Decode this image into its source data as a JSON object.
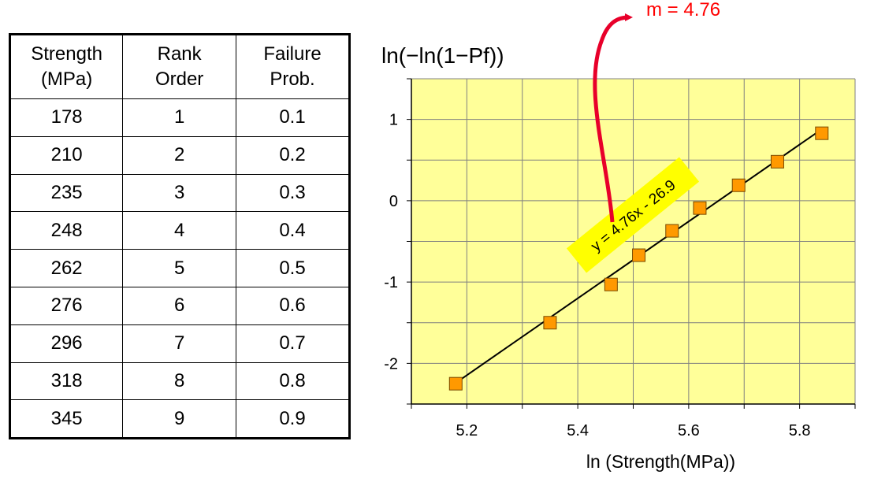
{
  "table": {
    "headers": [
      {
        "line1": "Strength",
        "line2": "(MPa)"
      },
      {
        "line1": "Rank",
        "line2": "Order"
      },
      {
        "line1": "Failure",
        "line2": "Prob."
      }
    ],
    "rows": [
      [
        "178",
        "1",
        "0.1"
      ],
      [
        "210",
        "2",
        "0.2"
      ],
      [
        "235",
        "3",
        "0.3"
      ],
      [
        "248",
        "4",
        "0.4"
      ],
      [
        "262",
        "5",
        "0.5"
      ],
      [
        "276",
        "6",
        "0.6"
      ],
      [
        "296",
        "7",
        "0.7"
      ],
      [
        "318",
        "8",
        "0.8"
      ],
      [
        "345",
        "9",
        "0.9"
      ]
    ]
  },
  "chart_data": {
    "type": "scatter",
    "ylabel": "ln(−ln(1−Pf))",
    "xlabel": "ln (Strength(MPa))",
    "xlim": [
      5.1,
      5.9
    ],
    "ylim": [
      -2.5,
      1.5
    ],
    "xticks": [
      {
        "value": 5.2,
        "label": "5.2"
      },
      {
        "value": 5.4,
        "label": "5.4"
      },
      {
        "value": 5.6,
        "label": "5.6"
      },
      {
        "value": 5.8,
        "label": "5.8"
      }
    ],
    "yticks": [
      {
        "value": 1,
        "label": "1"
      },
      {
        "value": 0,
        "label": "0"
      },
      {
        "value": -1,
        "label": "-1"
      },
      {
        "value": -2,
        "label": "-2"
      }
    ],
    "grid": true,
    "plot_background": "#ffff99",
    "marker_color": "#ff9900",
    "points": [
      {
        "x": 5.18,
        "y": -2.25
      },
      {
        "x": 5.35,
        "y": -1.5
      },
      {
        "x": 5.46,
        "y": -1.03
      },
      {
        "x": 5.51,
        "y": -0.67
      },
      {
        "x": 5.57,
        "y": -0.37
      },
      {
        "x": 5.62,
        "y": -0.09
      },
      {
        "x": 5.69,
        "y": 0.19
      },
      {
        "x": 5.76,
        "y": 0.48
      },
      {
        "x": 5.84,
        "y": 0.83
      }
    ],
    "trendline": {
      "x": [
        5.18,
        5.84
      ],
      "y": [
        -2.24,
        0.88
      ]
    },
    "equation_label": "y = 4.76x - 26.9",
    "equation_box_color": "#ffff00",
    "slope_annotation": "m = 4.76",
    "annotation_color": "#ff0000"
  }
}
